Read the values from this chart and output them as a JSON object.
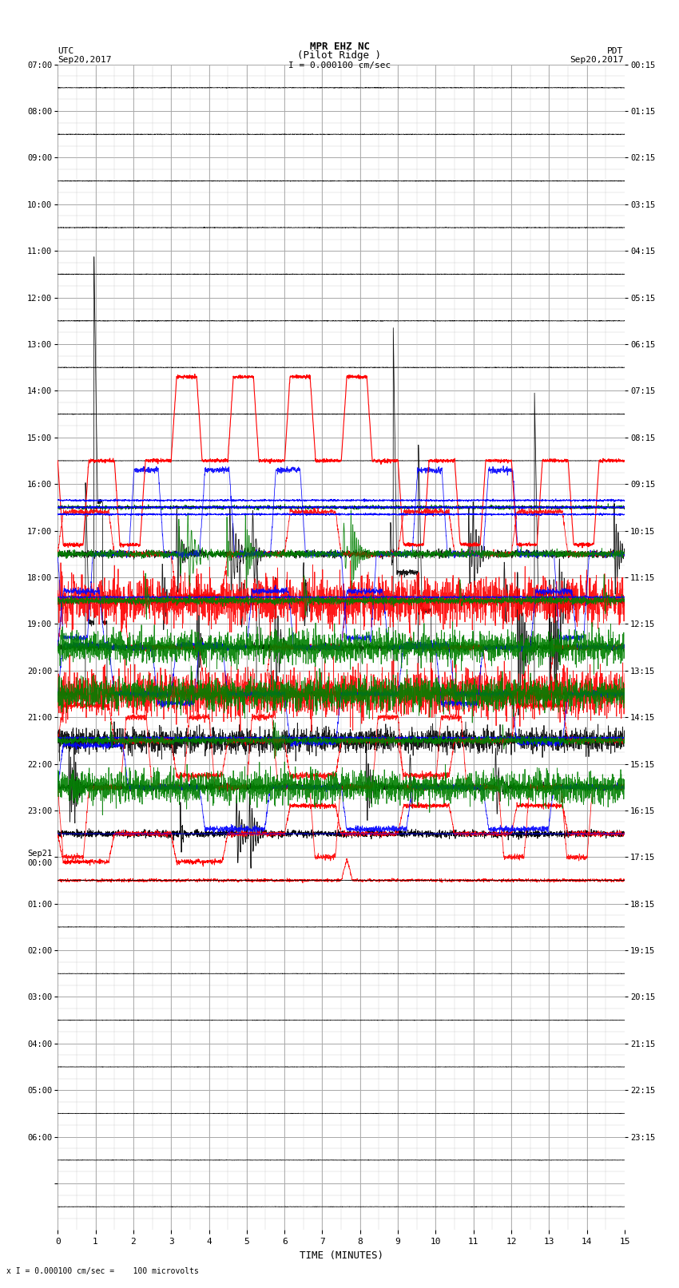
{
  "title_line1": "MPR EHZ NC",
  "title_line2": "(Pilot Ridge )",
  "title_scale": "I = 0.000100 cm/sec",
  "left_header_line1": "UTC",
  "left_header_line2": "Sep20,2017",
  "right_header_line1": "PDT",
  "right_header_line2": "Sep20,2017",
  "bottom_label": "TIME (MINUTES)",
  "bottom_note": "x I = 0.000100 cm/sec =    100 microvolts",
  "xlim": [
    0,
    15
  ],
  "xticks": [
    0,
    1,
    2,
    3,
    4,
    5,
    6,
    7,
    8,
    9,
    10,
    11,
    12,
    13,
    14,
    15
  ],
  "num_rows": 25,
  "left_times": [
    "07:00",
    "08:00",
    "09:00",
    "10:00",
    "11:00",
    "12:00",
    "13:00",
    "14:00",
    "15:00",
    "16:00",
    "17:00",
    "18:00",
    "19:00",
    "20:00",
    "21:00",
    "22:00",
    "23:00",
    "Sep21\n00:00",
    "01:00",
    "02:00",
    "03:00",
    "04:00",
    "05:00",
    "06:00",
    ""
  ],
  "right_times": [
    "00:15",
    "01:15",
    "02:15",
    "03:15",
    "04:15",
    "05:15",
    "06:15",
    "07:15",
    "08:15",
    "09:15",
    "10:15",
    "11:15",
    "12:15",
    "13:15",
    "14:15",
    "15:15",
    "16:15",
    "17:15",
    "18:15",
    "19:15",
    "20:15",
    "21:15",
    "22:15",
    "23:15",
    ""
  ],
  "background_color": "#ffffff",
  "grid_major_color": "#999999",
  "grid_minor_color": "#cccccc",
  "trace_colors": [
    "#000000",
    "#ff0000",
    "#0000ff",
    "#008000"
  ],
  "fig_width": 8.5,
  "fig_height": 16.13
}
